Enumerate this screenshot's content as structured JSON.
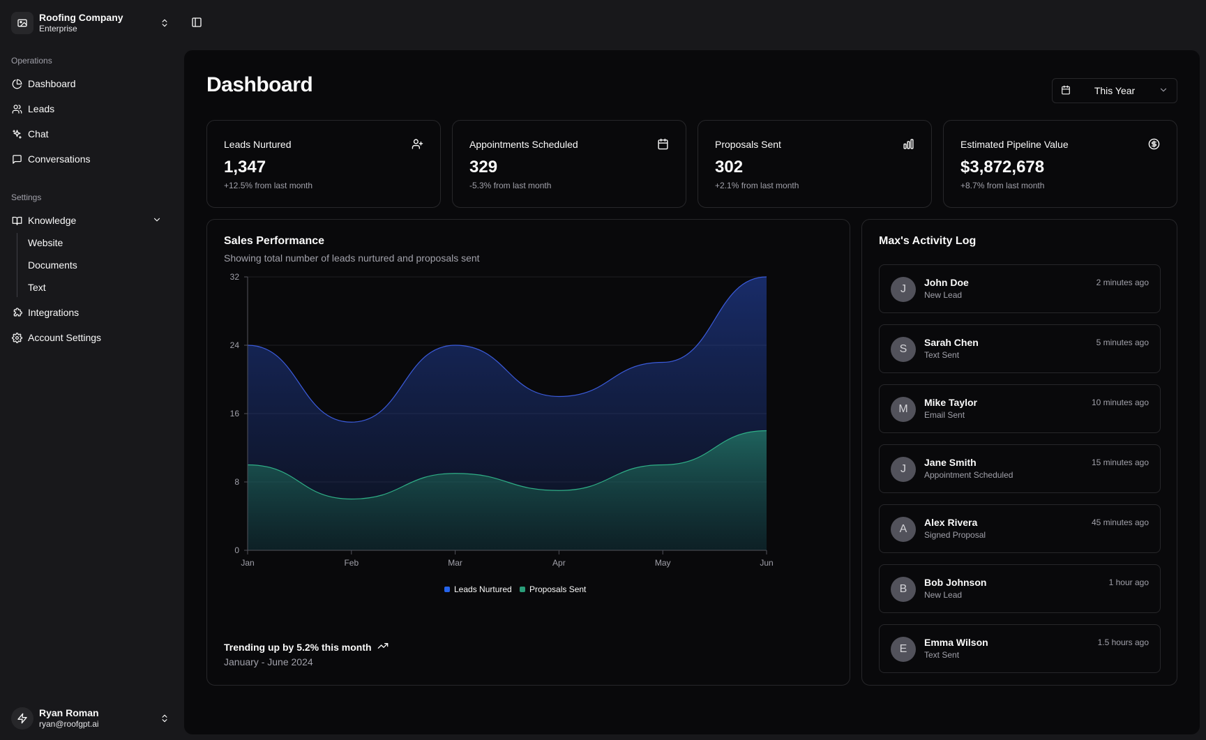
{
  "company": {
    "name": "Roofing Company",
    "plan": "Enterprise"
  },
  "sidebar": {
    "operations_label": "Operations",
    "operations": [
      {
        "label": "Dashboard",
        "icon": "pie-chart-icon"
      },
      {
        "label": "Leads",
        "icon": "users-icon"
      },
      {
        "label": "Chat",
        "icon": "sparkles-icon"
      },
      {
        "label": "Conversations",
        "icon": "message-square-icon"
      }
    ],
    "settings_label": "Settings",
    "knowledge": {
      "label": "Knowledge",
      "icon": "book-icon",
      "children": [
        "Website",
        "Documents",
        "Text"
      ]
    },
    "integrations": {
      "label": "Integrations",
      "icon": "puzzle-icon"
    },
    "account_settings": {
      "label": "Account Settings",
      "icon": "gear-icon"
    }
  },
  "user": {
    "name": "Ryan Roman",
    "email": "ryan@roofgpt.ai"
  },
  "page": {
    "title": "Dashboard",
    "date_range": "This Year"
  },
  "stats": [
    {
      "title": "Leads Nurtured",
      "value": "1,347",
      "change": "+12.5% from last month",
      "icon": "user-plus-icon"
    },
    {
      "title": "Appointments Scheduled",
      "value": "329",
      "change": "-5.3% from last month",
      "icon": "calendar-icon"
    },
    {
      "title": "Proposals Sent",
      "value": "302",
      "change": "+2.1% from last month",
      "icon": "bar-chart-icon"
    },
    {
      "title": "Estimated Pipeline Value",
      "value": "$3,872,678",
      "change": "+8.7% from last month",
      "icon": "dollar-circle-icon"
    }
  ],
  "sales": {
    "title": "Sales Performance",
    "subtitle": "Showing total number of leads nurtured and proposals sent",
    "trend": "Trending up by 5.2% this month",
    "range": "January - June 2024"
  },
  "chart_data": {
    "type": "area",
    "categories": [
      "Jan",
      "Feb",
      "Mar",
      "Apr",
      "May",
      "Jun"
    ],
    "series": [
      {
        "name": "Leads Nurtured",
        "values": [
          24,
          15,
          24,
          18,
          22,
          32
        ],
        "color": "#2563eb"
      },
      {
        "name": "Proposals Sent",
        "values": [
          10,
          6,
          9,
          7,
          10,
          14
        ],
        "color": "#2a9d79"
      }
    ],
    "ylim": [
      0,
      32
    ],
    "yticks": [
      0,
      8,
      16,
      24,
      32
    ],
    "grid": true,
    "legend": "bottom"
  },
  "activity": {
    "title": "Max's Activity Log",
    "items": [
      {
        "initial": "J",
        "name": "John Doe",
        "action": "New Lead",
        "time": "2 minutes ago"
      },
      {
        "initial": "S",
        "name": "Sarah Chen",
        "action": "Text Sent",
        "time": "5 minutes ago"
      },
      {
        "initial": "M",
        "name": "Mike Taylor",
        "action": "Email Sent",
        "time": "10 minutes ago"
      },
      {
        "initial": "J",
        "name": "Jane Smith",
        "action": "Appointment Scheduled",
        "time": "15 minutes ago"
      },
      {
        "initial": "A",
        "name": "Alex Rivera",
        "action": "Signed Proposal",
        "time": "45 minutes ago"
      },
      {
        "initial": "B",
        "name": "Bob Johnson",
        "action": "New Lead",
        "time": "1 hour ago"
      },
      {
        "initial": "E",
        "name": "Emma Wilson",
        "action": "Text Sent",
        "time": "1.5 hours ago"
      }
    ]
  }
}
